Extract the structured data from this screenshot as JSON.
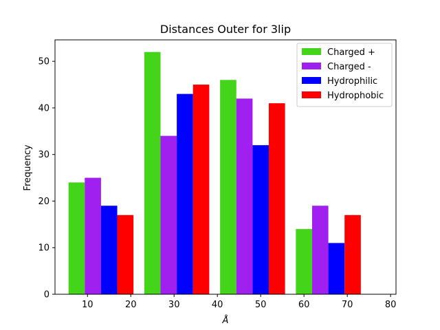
{
  "chart_data": {
    "type": "bar",
    "title": "Distances Outer for 3lip",
    "xlabel": "Å",
    "ylabel": "Frequency",
    "xlim": [
      2.5,
      81.25
    ],
    "ylim": [
      0,
      54.6
    ],
    "xticks": [
      10,
      20,
      30,
      40,
      50,
      60,
      70,
      80
    ],
    "yticks": [
      0,
      10,
      20,
      30,
      40,
      50
    ],
    "bin_edges": [
      5.625,
      23.125,
      40.625,
      58.125,
      75.625
    ],
    "bar_width": 3.75,
    "series": [
      {
        "name": "Charged +",
        "color": "#44d41a",
        "values": [
          24,
          52,
          46,
          14
        ]
      },
      {
        "name": "Charged -",
        "color": "#a020f0",
        "values": [
          25,
          34,
          42,
          19
        ]
      },
      {
        "name": "Hydrophilic",
        "color": "#0000ff",
        "values": [
          19,
          43,
          32,
          11
        ]
      },
      {
        "name": "Hydrophobic",
        "color": "#ff0000",
        "values": [
          17,
          45,
          41,
          17
        ]
      }
    ],
    "legend_position": "top-right",
    "grid": false
  }
}
